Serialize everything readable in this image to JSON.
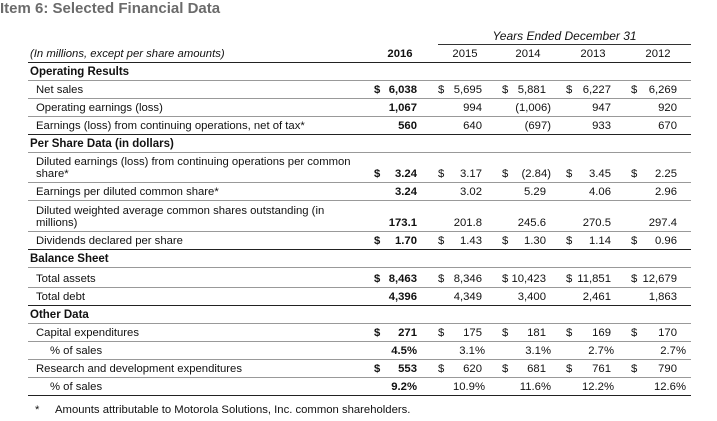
{
  "title": "Item 6: Selected Financial Data",
  "years_header": "Years Ended December 31",
  "units_label": "(In millions, except per share amounts)",
  "years": [
    "2016",
    "2015",
    "2014",
    "2013",
    "2012"
  ],
  "sections": {
    "operating": {
      "title": "Operating Results",
      "net_sales": {
        "label": "Net sales",
        "cur": "$",
        "values": [
          "6,038",
          "5,695",
          "5,881",
          "6,227",
          "6,269"
        ]
      },
      "operating_earnings": {
        "label": "Operating earnings (loss)",
        "values": [
          "1,067",
          "994",
          "(1,006)",
          "947",
          "920"
        ]
      },
      "earnings_continuing": {
        "label": "Earnings (loss) from continuing operations, net of tax*",
        "values": [
          "560",
          "640",
          "(697)",
          "933",
          "670"
        ]
      }
    },
    "per_share": {
      "title": "Per Share Data (in dollars)",
      "diluted_continuing": {
        "label_1": "Diluted earnings (loss) from continuing operations per common",
        "label_2": "share*",
        "cur": "$",
        "values": [
          "3.24",
          "3.17",
          "(2.84)",
          "3.45",
          "2.25"
        ]
      },
      "diluted_common": {
        "label": "Earnings per diluted common share*",
        "values": [
          "3.24",
          "3.02",
          "5.29",
          "4.06",
          "2.96"
        ]
      },
      "weighted_shares": {
        "label_1": "Diluted weighted average common shares outstanding (in",
        "label_2": "millions)",
        "values": [
          "173.1",
          "201.8",
          "245.6",
          "270.5",
          "297.4"
        ]
      },
      "dividends": {
        "label": "Dividends declared per share",
        "cur": "$",
        "values": [
          "1.70",
          "1.43",
          "1.30",
          "1.14",
          "0.96"
        ]
      }
    },
    "balance": {
      "title": "Balance Sheet",
      "total_assets": {
        "label": "Total assets",
        "cur": "$",
        "values": [
          "8,463",
          "8,346",
          "10,423",
          "11,851",
          "12,679"
        ]
      },
      "total_debt": {
        "label": "Total debt",
        "values": [
          "4,396",
          "4,349",
          "3,400",
          "2,461",
          "1,863"
        ]
      }
    },
    "other": {
      "title": "Other Data",
      "capex": {
        "label": "Capital expenditures",
        "cur": "$",
        "values": [
          "271",
          "175",
          "181",
          "169",
          "170"
        ]
      },
      "capex_pct": {
        "label": "% of sales",
        "values": [
          "4.5%",
          "3.1%",
          "3.1%",
          "2.7%",
          "2.7%"
        ]
      },
      "rnd": {
        "label": "Research and development expenditures",
        "cur": "$",
        "values": [
          "553",
          "620",
          "681",
          "761",
          "790"
        ]
      },
      "rnd_pct": {
        "label": "% of sales",
        "values": [
          "9.2%",
          "10.9%",
          "11.6%",
          "12.2%",
          "12.6%"
        ]
      }
    }
  },
  "footnote": {
    "star": "*",
    "text": "Amounts attributable to Motorola Solutions, Inc. common shareholders."
  }
}
